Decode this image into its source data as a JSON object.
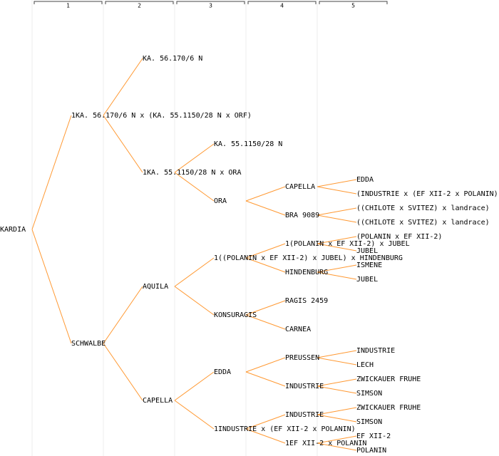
{
  "generations": [
    "1",
    "2",
    "3",
    "4",
    "5"
  ],
  "tree": {
    "label": "KARDIA",
    "children": [
      {
        "label": "1KA. 56.170/6 N x (KA. 55.1150/28 N x ORF)",
        "children": [
          {
            "label": "KA. 56.170/6 N"
          },
          {
            "label": "1KA. 55.1150/28 N x ORA",
            "children": [
              {
                "label": "KA. 55.1150/28 N"
              },
              {
                "label": "ORA",
                "children": [
                  {
                    "label": "CAPELLA",
                    "children": [
                      {
                        "label": "EDDA"
                      },
                      {
                        "label": "(INDUSTRIE x (EF XII-2 x POLANIN))"
                      }
                    ]
                  },
                  {
                    "label": "BRA 9089",
                    "children": [
                      {
                        "label": "((CHILOTE x SVITEZ) x landrace)"
                      },
                      {
                        "label": "((CHILOTE x SVITEZ) x landrace)"
                      }
                    ]
                  }
                ]
              }
            ]
          }
        ]
      },
      {
        "label": "SCHWALBE",
        "children": [
          {
            "label": "AQUILA",
            "children": [
              {
                "label": "1((POLANIN x EF XII-2) x JUBEL) x HINDENBURG",
                "children": [
                  {
                    "label": "1(POLANIN x EF XII-2) x JUBEL",
                    "children": [
                      {
                        "label": "(POLANIN x EF XII-2)"
                      },
                      {
                        "label": "JUBEL"
                      }
                    ]
                  },
                  {
                    "label": "HINDENBURG",
                    "children": [
                      {
                        "label": "ISMENE"
                      },
                      {
                        "label": "JUBEL"
                      }
                    ]
                  }
                ]
              },
              {
                "label": "KONSURAGIS",
                "children": [
                  {
                    "label": "RAGIS 2459"
                  },
                  {
                    "label": "CARNEA"
                  }
                ]
              }
            ]
          },
          {
            "label": "CAPELLA",
            "children": [
              {
                "label": "EDDA",
                "children": [
                  {
                    "label": "PREUSSEN",
                    "children": [
                      {
                        "label": "INDUSTRIE"
                      },
                      {
                        "label": "LECH"
                      }
                    ]
                  },
                  {
                    "label": "INDUSTRIE",
                    "children": [
                      {
                        "label": "ZWICKAUER FRUHE"
                      },
                      {
                        "label": "SIMSON"
                      }
                    ]
                  }
                ]
              },
              {
                "label": "1INDUSTRIE x (EF XII-2 x POLANIN)",
                "children": [
                  {
                    "label": "INDUSTRIE",
                    "children": [
                      {
                        "label": "ZWICKAUER FRUHE"
                      },
                      {
                        "label": "SIMSON"
                      }
                    ]
                  },
                  {
                    "label": "1EF XII-2 x POLANIN",
                    "children": [
                      {
                        "label": "EF XII-2"
                      },
                      {
                        "label": "POLANIN"
                      }
                    ]
                  }
                ]
              }
            ]
          }
        ]
      }
    ]
  }
}
